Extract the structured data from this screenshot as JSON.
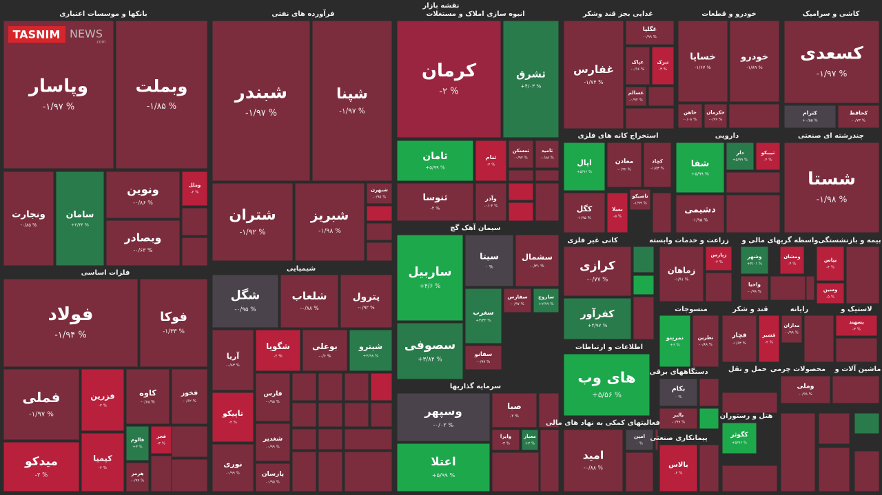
{
  "title": "نقشه بازار",
  "logo": {
    "name": "TASNIM",
    "suffix": "NEWS",
    "domain": ".com"
  },
  "sectors": [
    {
      "name": "بانکها و موسسات اعتباری",
      "tiles": [
        {
          "name": "وپاسار",
          "change": "-۱/۹۷ %"
        },
        {
          "name": "وبملت",
          "change": "-۱/۸۵ %"
        },
        {
          "name": "ونجارت",
          "change": "-۰/۸۵ %"
        },
        {
          "name": "سامان",
          "change": "+۲/۴۴ %"
        },
        {
          "name": "ونوین",
          "change": "-۰/۸۶ %"
        },
        {
          "name": "وبصادر",
          "change": "-۰/۶۳ %"
        },
        {
          "name": "وملل",
          "change": "-۲ %"
        }
      ]
    },
    {
      "name": "فرآورده های نفتی",
      "tiles": [
        {
          "name": "شبندر",
          "change": "-۱/۹۷ %"
        },
        {
          "name": "شپنا",
          "change": "-۱/۹۷ %"
        },
        {
          "name": "شتران",
          "change": "-۱/۹۲ %"
        },
        {
          "name": "شبریز",
          "change": "-۱/۹۸ %"
        },
        {
          "name": "شبهرن",
          "change": "-۰/۹۵ %"
        }
      ]
    },
    {
      "name": "انبوه سازی املاک و مستغلات",
      "tiles": [
        {
          "name": "کرمان",
          "change": "-۲ %"
        },
        {
          "name": "ثشرق",
          "change": "+۴/۰۳ %"
        },
        {
          "name": "ثامان",
          "change": "+۵/۹۹ %"
        },
        {
          "name": "ثنام",
          "change": "-۴ %"
        },
        {
          "name": "ثمسکن",
          "change": "-۰/۹۷ %"
        },
        {
          "name": "ثامید",
          "change": "-۰/۸۸ %"
        },
        {
          "name": "ثنوسا",
          "change": "-۲ %"
        },
        {
          "name": "وآذر",
          "change": "-۰/۰۴ %"
        }
      ]
    },
    {
      "name": "سیمان آهک گچ",
      "tiles": [
        {
          "name": "ساربیل",
          "change": "+۴/۶ %"
        },
        {
          "name": "سیتا",
          "change": "۰ %"
        },
        {
          "name": "سشمال",
          "change": "-۰/۴۱ %"
        },
        {
          "name": "سغرب",
          "change": "+۳/۳۲ %"
        },
        {
          "name": "سفارس",
          "change": "-۰/۹۷ %"
        },
        {
          "name": "ساروج",
          "change": "+۲/۹۹ %"
        },
        {
          "name": "سصوفی",
          "change": "+۳/۸۴ %"
        },
        {
          "name": "سفانو",
          "change": "-۰/۹۹ %"
        }
      ]
    },
    {
      "name": "سرمایه گذاریها",
      "tiles": [
        {
          "name": "وسپهر",
          "change": "-۰/۰۲ %"
        },
        {
          "name": "صبا",
          "change": "-۲ %"
        },
        {
          "name": "اعتلا",
          "change": "+۵/۹۹ %"
        },
        {
          "name": "واپرا",
          "change": "-۳ %"
        },
        {
          "name": "معیار",
          "change": "+۳ %"
        }
      ]
    },
    {
      "name": "غذایی بجز قند وشکر",
      "tiles": [
        {
          "name": "غفارس",
          "change": "-۱/۷۴ %"
        },
        {
          "name": "غگلپا",
          "change": "-۰/۹۹ %"
        },
        {
          "name": "غپاک",
          "change": "-۰/۹۶ %"
        },
        {
          "name": "تبرک",
          "change": "-۳ %"
        },
        {
          "name": "غسالم",
          "change": "-۰/۹۲ %"
        }
      ]
    },
    {
      "name": "خودرو و قطعات",
      "tiles": [
        {
          "name": "خساپا",
          "change": "-۱/۶۷ %"
        },
        {
          "name": "خودرو",
          "change": "-۱/۸۹ %"
        },
        {
          "name": "خاهن",
          "change": "-۰/۰۸ %"
        },
        {
          "name": "خکرمان",
          "change": "-۰/۹۹ %"
        }
      ]
    },
    {
      "name": "کاشی و سرامیک",
      "tiles": [
        {
          "name": "کسعدی",
          "change": "-۱/۹۷ %"
        },
        {
          "name": "کترام",
          "change": "+۰/۵۵ %"
        },
        {
          "name": "کحافظ",
          "change": "-۰/۷۳ %"
        }
      ]
    },
    {
      "name": "استخراج کانه های فلزی",
      "tiles": [
        {
          "name": "اپال",
          "change": "+۵/۹۶ %"
        },
        {
          "name": "معادن",
          "change": "-۰/۹۲ %"
        },
        {
          "name": "کچاد",
          "change": "-۱/۵۳ %"
        },
        {
          "name": "کگل",
          "change": "-۱/۹۵ %"
        },
        {
          "name": "بمیلا",
          "change": "-۵ %"
        },
        {
          "name": "تاصیکو",
          "change": "-۱/۹۹ %"
        }
      ]
    },
    {
      "name": "دارویی",
      "tiles": [
        {
          "name": "شفا",
          "change": "+۵/۹۹ %"
        },
        {
          "name": "دلر",
          "change": "+۵/۹۹ %"
        },
        {
          "name": "تیپیکو",
          "change": "-۴ %"
        },
        {
          "name": "دشیمی",
          "change": "-۱/۹۵ %"
        }
      ]
    },
    {
      "name": "چندرشته ای صنعتی",
      "tiles": [
        {
          "name": "شستا",
          "change": "-۱/۹۸ %"
        }
      ]
    },
    {
      "name": "کانی غیر فلزی",
      "tiles": [
        {
          "name": "کرازی",
          "change": "-۰/۷۷ %"
        },
        {
          "name": "کفرآور",
          "change": "+۴/۹۷ %"
        }
      ]
    },
    {
      "name": "زراعت و خدمات وابسته",
      "tiles": [
        {
          "name": "زماهان",
          "change": "-۱/۹۱ %"
        },
        {
          "name": "زپارس",
          "change": "-۲ %"
        }
      ]
    },
    {
      "name": "واسطه گریهای مالی و",
      "tiles": [
        {
          "name": "وشهر",
          "change": "+۴/۰۱ %"
        },
        {
          "name": "واحیا",
          "change": "-۰/۹۹ %"
        },
        {
          "name": "ومشان",
          "change": "-۴ %"
        }
      ]
    },
    {
      "name": "بیمه و بازنشستگی",
      "tiles": [
        {
          "name": "بپاس",
          "change": "-۴ %"
        },
        {
          "name": "وسین",
          "change": "-۵ %"
        }
      ]
    },
    {
      "name": "منسوجات",
      "tiles": [
        {
          "name": "نمرینو",
          "change": "+۶ %"
        },
        {
          "name": "نطرین",
          "change": "-۰/۸۹ %"
        }
      ]
    },
    {
      "name": "قند و شکر",
      "tiles": [
        {
          "name": "قچار",
          "change": "-۱/۶۳ %"
        },
        {
          "name": "قشیر",
          "change": "-۲ %"
        }
      ]
    },
    {
      "name": "رایانه",
      "tiles": [
        {
          "name": "مداران",
          "change": "-۰/۹۹ %"
        }
      ]
    },
    {
      "name": "لاستیک و",
      "tiles": [
        {
          "name": "پسهند",
          "change": "-۳ %"
        }
      ]
    },
    {
      "name": "اطلاعات و ارتباطات",
      "tiles": [
        {
          "name": "های وب",
          "change": "+۵/۵۶ %"
        }
      ]
    },
    {
      "name": "دستگاههای برقی",
      "tiles": [
        {
          "name": "بکام",
          "change": "۰ %"
        },
        {
          "name": "بالبر",
          "change": "-۰/۹۹ %"
        }
      ]
    },
    {
      "name": "حمل و نقل",
      "tiles": []
    },
    {
      "name": "محصولات چرمی",
      "tiles": [
        {
          "name": "وملی",
          "change": "-۰/۹۹ %"
        }
      ]
    },
    {
      "name": "ماشین آلات و",
      "tiles": []
    },
    {
      "name": "فعالیتهای کمکی به نهاد های مالی",
      "tiles": [
        {
          "name": "امید",
          "change": "-۰/۸۸ %"
        },
        {
          "name": "امین",
          "change": "۰ %"
        }
      ]
    },
    {
      "name": "هتل و رستوران",
      "tiles": [
        {
          "name": "کگوثر",
          "change": "+۵/۹۶ %"
        }
      ]
    },
    {
      "name": "پیمانکاری صنعتی",
      "tiles": [
        {
          "name": "بالاس",
          "change": "-۲ %"
        }
      ]
    },
    {
      "name": "شیمیایی",
      "tiles": [
        {
          "name": "شگل",
          "change": "-۰/۹۵ %"
        },
        {
          "name": "شلعاب",
          "change": "-۰/۸۸ %"
        },
        {
          "name": "پترول",
          "change": "-۰/۹۲ %"
        },
        {
          "name": "آریا",
          "change": "-۰/۸۳ %"
        },
        {
          "name": "شگویا",
          "change": "-۲ %"
        },
        {
          "name": "بوعلی",
          "change": "-۰/۶ %"
        },
        {
          "name": "شیترو",
          "change": "+۴/۹۸ %"
        },
        {
          "name": "تاپیکو",
          "change": "-۲ %"
        },
        {
          "name": "فارس",
          "change": "-۰/۹۵ %"
        },
        {
          "name": "نوری",
          "change": "-۰/۹۹ %"
        },
        {
          "name": "شغدیر",
          "change": "-۰/۹۹ %"
        },
        {
          "name": "پارسان",
          "change": "-۰/۹۵ %"
        }
      ]
    },
    {
      "name": "فلزات اساسی",
      "tiles": [
        {
          "name": "فولاد",
          "change": "-۱/۹۴ %"
        },
        {
          "name": "فوکا",
          "change": "-۱/۳۳ %"
        },
        {
          "name": "فملی",
          "change": "-۱/۹۷ %"
        },
        {
          "name": "فزرین",
          "change": "-۲ %"
        },
        {
          "name": "کاوه",
          "change": "-۰/۶۵ %"
        },
        {
          "name": "فخوز",
          "change": "-۰/۶۲ %"
        },
        {
          "name": "میدکو",
          "change": "-۲ %"
        },
        {
          "name": "کیمیا",
          "change": "-۲ %"
        },
        {
          "name": "فالوم",
          "change": "+۳ %"
        },
        {
          "name": "فجر",
          "change": "-۳ %"
        },
        {
          "name": "هرمز",
          "change": "-۰/۹۹ %"
        }
      ]
    }
  ]
}
